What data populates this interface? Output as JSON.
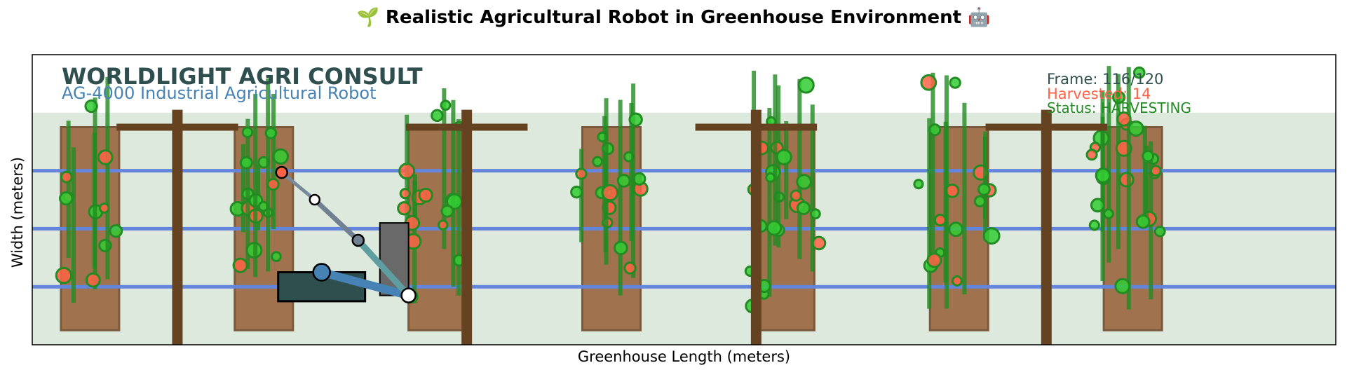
{
  "title": "🌱 Realistic Agricultural Robot in Greenhouse Environment 🤖",
  "chart_data": {
    "type": "scatter",
    "title": "🌱 Realistic Agricultural Robot in Greenhouse Environment 🤖",
    "xlabel": "Greenhouse Length (meters)",
    "ylabel": "Width (meters)",
    "xlim": [
      0,
      15
    ],
    "ylim": [
      0,
      5
    ],
    "ticks_visible": false,
    "grid": false,
    "annotations": {
      "company": "WORLDLIGHT AGRI CONSULT",
      "model": "AG-4000 Industrial Agricultural Robot",
      "frame": "Frame: 116/120",
      "harvested": "Harvested: 14",
      "status": "Status: HARVESTING"
    },
    "greenhouse": {
      "floor_top_y": 4.0,
      "floor_color": "#dce9dc"
    },
    "irrigation_lines_y": [
      3.0,
      2.0,
      1.0
    ],
    "growing_beds": [
      {
        "x": 0.33,
        "y": 0.25,
        "w": 0.67,
        "h": 3.5
      },
      {
        "x": 2.33,
        "y": 0.25,
        "w": 0.67,
        "h": 3.5
      },
      {
        "x": 4.33,
        "y": 0.25,
        "w": 0.67,
        "h": 3.5
      },
      {
        "x": 6.33,
        "y": 0.25,
        "w": 0.67,
        "h": 3.5
      },
      {
        "x": 8.33,
        "y": 0.25,
        "w": 0.67,
        "h": 3.5
      },
      {
        "x": 10.33,
        "y": 0.25,
        "w": 0.67,
        "h": 3.5
      },
      {
        "x": 12.33,
        "y": 0.25,
        "w": 0.67,
        "h": 3.5
      }
    ],
    "support_posts": [
      {
        "x": 1.67,
        "beam": true
      },
      {
        "x": 5.0,
        "beam": true
      },
      {
        "x": 8.33,
        "beam": true
      },
      {
        "x": 11.67,
        "beam": true
      }
    ],
    "beam_y": 3.75,
    "beam_half_width": 0.7,
    "robot": {
      "base": {
        "x": 2.83,
        "y": 0.75,
        "w": 1.0,
        "h": 0.5
      },
      "mast": {
        "x": 4.0,
        "y": 0.85,
        "w": 0.33,
        "h": 1.25
      },
      "arm_points": [
        {
          "x": 3.33,
          "y": 1.25
        },
        {
          "x": 4.33,
          "y": 0.85
        },
        {
          "x": 3.75,
          "y": 1.8
        },
        {
          "x": 3.25,
          "y": 2.5
        },
        {
          "x": 2.87,
          "y": 2.97
        }
      ]
    },
    "plant_colors": {
      "stem": "#228b22",
      "leaf": "#32cd32",
      "ripe": "#ff6347"
    },
    "plants": [
      {
        "x": 0.42,
        "h": 4.0,
        "stems": 2
      },
      {
        "x": 0.85,
        "h": 4.8,
        "stems": 3
      },
      {
        "x": 2.45,
        "h": 4.0,
        "stems": 3
      },
      {
        "x": 2.72,
        "h": 4.6,
        "stems": 3
      },
      {
        "x": 4.42,
        "h": 4.0,
        "stems": 3
      },
      {
        "x": 4.85,
        "h": 4.7,
        "stems": 3
      },
      {
        "x": 6.45,
        "h": 4.4,
        "stems": 3
      },
      {
        "x": 6.78,
        "h": 4.8,
        "stems": 4
      },
      {
        "x": 8.45,
        "h": 4.9,
        "stems": 5
      },
      {
        "x": 8.85,
        "h": 4.6,
        "stems": 3
      },
      {
        "x": 10.45,
        "h": 4.8,
        "stems": 4
      },
      {
        "x": 10.85,
        "h": 4.5,
        "stems": 3
      },
      {
        "x": 12.45,
        "h": 4.9,
        "stems": 5
      },
      {
        "x": 12.9,
        "h": 4.2,
        "stems": 3
      }
    ]
  }
}
